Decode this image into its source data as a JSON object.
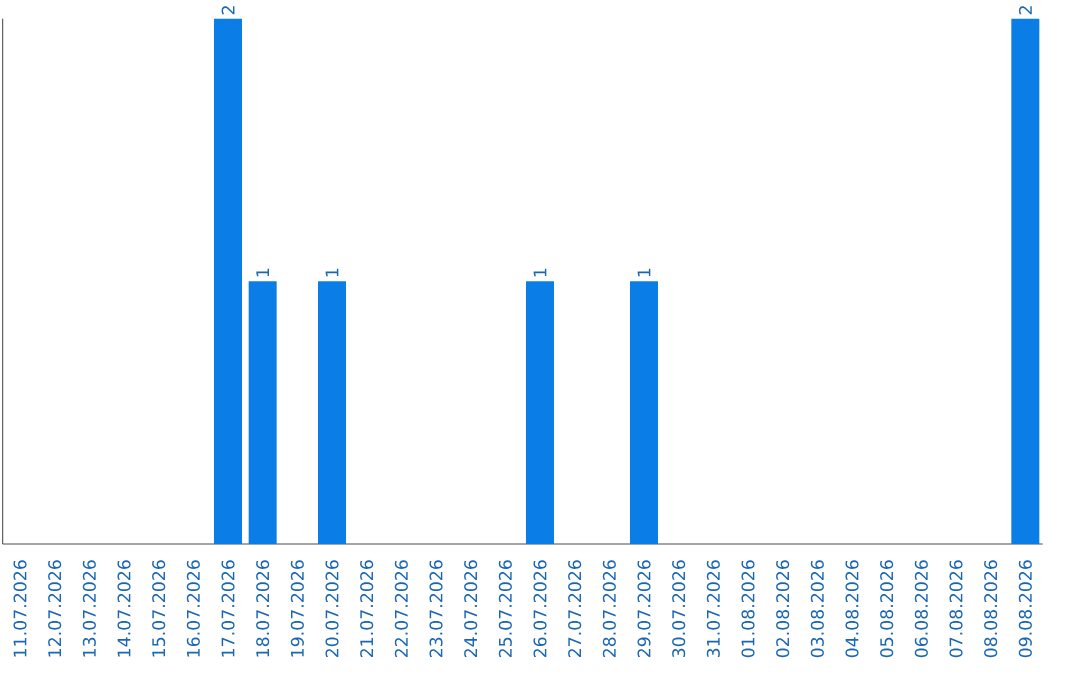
{
  "chart_data": {
    "type": "bar",
    "categories": [
      "11.07.2026",
      "12.07.2026",
      "13.07.2026",
      "14.07.2026",
      "15.07.2026",
      "16.07.2026",
      "17.07.2026",
      "18.07.2026",
      "19.07.2026",
      "20.07.2026",
      "21.07.2026",
      "22.07.2026",
      "23.07.2026",
      "24.07.2026",
      "25.07.2026",
      "26.07.2026",
      "27.07.2026",
      "28.07.2026",
      "29.07.2026",
      "30.07.2026",
      "31.07.2026",
      "01.08.2026",
      "02.08.2026",
      "03.08.2026",
      "04.08.2026",
      "05.08.2026",
      "06.08.2026",
      "07.08.2026",
      "08.08.2026",
      "09.08.2026"
    ],
    "values": [
      0,
      0,
      0,
      0,
      0,
      0,
      2,
      1,
      0,
      1,
      0,
      0,
      0,
      0,
      0,
      1,
      0,
      0,
      1,
      0,
      0,
      0,
      0,
      0,
      0,
      0,
      0,
      0,
      0,
      2
    ],
    "value_labels": [
      null,
      null,
      null,
      null,
      null,
      null,
      "2",
      "1",
      null,
      "1",
      null,
      null,
      null,
      null,
      null,
      "1",
      null,
      null,
      "1",
      null,
      null,
      null,
      null,
      null,
      null,
      null,
      null,
      null,
      null,
      "2"
    ],
    "color": "#0a7ee6"
  }
}
